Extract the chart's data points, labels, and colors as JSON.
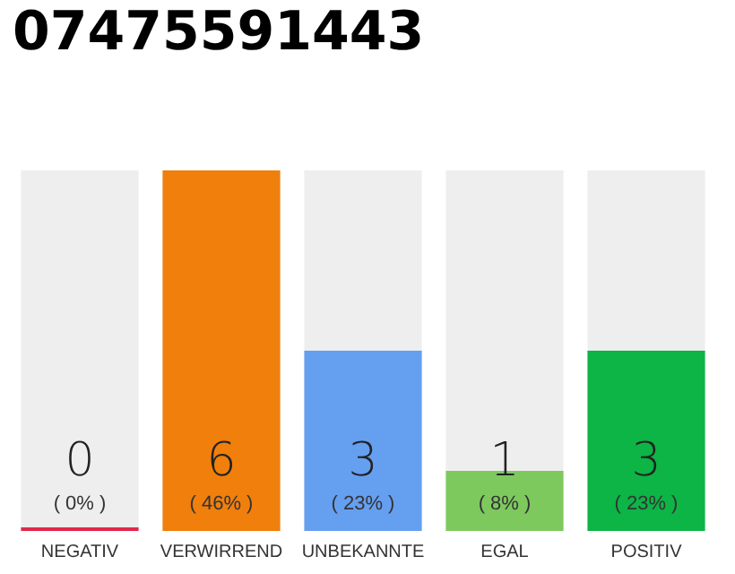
{
  "chart_data": {
    "type": "bar",
    "title": "07475591443",
    "categories": [
      "NEGATIV",
      "VERWIRREND",
      "UNBEKANNTE",
      "EGAL",
      "POSITIV"
    ],
    "values": [
      0,
      6,
      3,
      1,
      3
    ],
    "colors": [
      "#e0284a",
      "#f07f0c",
      "#659ff0",
      "#7dc95e",
      "#0db446"
    ],
    "value_labels": [
      "0\n( 0% )",
      "6\n( 46% )",
      "3\n( 23% )",
      "1\n( 8% )",
      "3\n( 23% )"
    ]
  }
}
